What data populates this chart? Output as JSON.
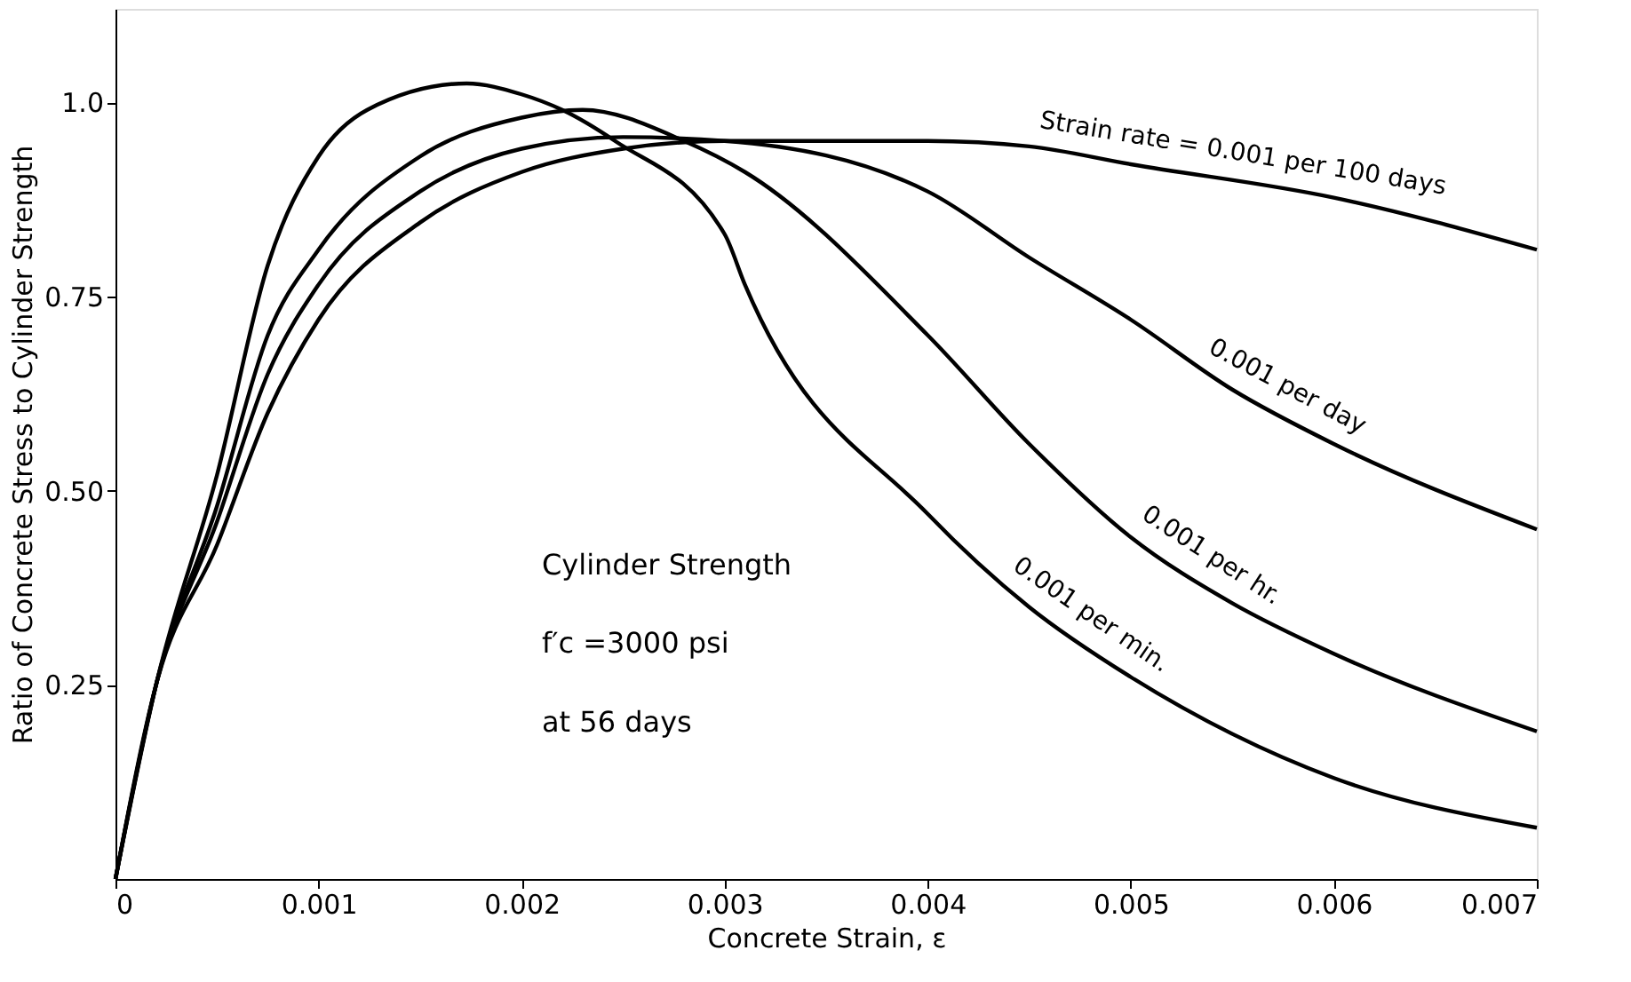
{
  "chart_data": {
    "type": "line",
    "xlabel": "Concrete Strain, ε",
    "ylabel": "Ratio of Concrete Stress to Cylinder Strength",
    "xlim": [
      0,
      0.007
    ],
    "ylim": [
      0,
      1.12
    ],
    "xticks": [
      0,
      0.001,
      0.002,
      0.003,
      0.004,
      0.005,
      0.006,
      0.007
    ],
    "yticks": [
      0.25,
      {
        "value": 0.5,
        "label": "0.50"
      },
      0.75,
      {
        "value": 1,
        "label": "1.0"
      }
    ],
    "grid": false,
    "marker": "none",
    "line_style": "solid",
    "annotations": [
      "Cylinder Strength",
      "f′c =3000 psi",
      "at 56 days"
    ],
    "series": [
      {
        "name": "Strain rate = 0.001 per 100 days",
        "color": "#000000",
        "x": [
          0,
          0.0002,
          0.0005,
          0.00075,
          0.001,
          0.0015,
          0.002,
          0.0025,
          0.003,
          0.004,
          0.0045,
          0.005,
          0.006,
          0.007
        ],
        "values": [
          0,
          0.25,
          0.43,
          0.6,
          0.72,
          0.845,
          0.91,
          0.94,
          0.95,
          0.95,
          0.943,
          0.92,
          0.877,
          0.81
        ]
      },
      {
        "name": "0.001 per day",
        "color": "#000000",
        "x": [
          0,
          0.0002,
          0.0005,
          0.00075,
          0.001,
          0.0015,
          0.002,
          0.0025,
          0.003,
          0.004,
          0.0045,
          0.005,
          0.0055,
          0.006,
          0.007
        ],
        "values": [
          0,
          0.25,
          0.46,
          0.65,
          0.765,
          0.885,
          0.94,
          0.955,
          0.95,
          0.885,
          0.8,
          0.72,
          0.63,
          0.56,
          0.45
        ]
      },
      {
        "name": "0.001 per hr.",
        "color": "#000000",
        "x": [
          0,
          0.0002,
          0.0005,
          0.00075,
          0.001,
          0.0015,
          0.002,
          0.0023,
          0.0028,
          0.0031,
          0.004,
          0.0045,
          0.005,
          0.0055,
          0.006,
          0.007
        ],
        "values": [
          0,
          0.25,
          0.48,
          0.7,
          0.81,
          0.93,
          0.98,
          0.99,
          0.95,
          0.91,
          0.7,
          0.56,
          0.44,
          0.355,
          0.29,
          0.19
        ]
      },
      {
        "name": "0.001 per min.",
        "color": "#000000",
        "x": [
          0,
          0.0002,
          0.0005,
          0.00075,
          0.001,
          0.00124,
          0.00173,
          0.002,
          0.0022,
          0.00246,
          0.003,
          0.0031,
          0.004,
          0.0045,
          0.005,
          0.006,
          0.007
        ],
        "values": [
          0,
          0.25,
          0.52,
          0.79,
          0.93,
          0.99,
          1.024,
          1.01,
          0.99,
          0.95,
          0.83,
          0.765,
          0.47,
          0.35,
          0.26,
          0.13,
          0.066
        ]
      }
    ]
  }
}
